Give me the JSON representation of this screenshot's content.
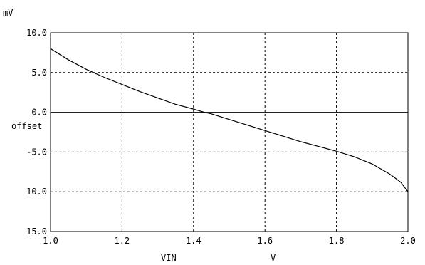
{
  "chart_data": {
    "type": "line",
    "title": "",
    "xlabel": "VIN",
    "xunit": "V",
    "ylabel": "offset",
    "yunit": "mV",
    "xlim": [
      1.0,
      2.0
    ],
    "ylim": [
      -15.0,
      10.0
    ],
    "x_ticks": [
      "1.0",
      "1.2",
      "1.4",
      "1.6",
      "1.8",
      "2.0"
    ],
    "y_ticks": [
      "10.0",
      "5.0",
      "0.0",
      "-5.0",
      "-10.0",
      "-15.0"
    ],
    "grid": true,
    "zero_line": true,
    "line_color": "#000000",
    "series": [
      {
        "x": [
          1.0,
          1.05,
          1.1,
          1.15,
          1.2,
          1.25,
          1.3,
          1.35,
          1.4,
          1.43,
          1.45,
          1.5,
          1.55,
          1.6,
          1.65,
          1.7,
          1.75,
          1.8,
          1.85,
          1.9,
          1.95,
          1.98,
          2.0
        ],
        "y": [
          8.0,
          6.6,
          5.4,
          4.4,
          3.5,
          2.6,
          1.8,
          1.0,
          0.4,
          0.0,
          -0.2,
          -0.9,
          -1.6,
          -2.3,
          -3.0,
          -3.7,
          -4.3,
          -4.9,
          -5.6,
          -6.5,
          -7.8,
          -8.8,
          -10.0
        ]
      }
    ]
  }
}
